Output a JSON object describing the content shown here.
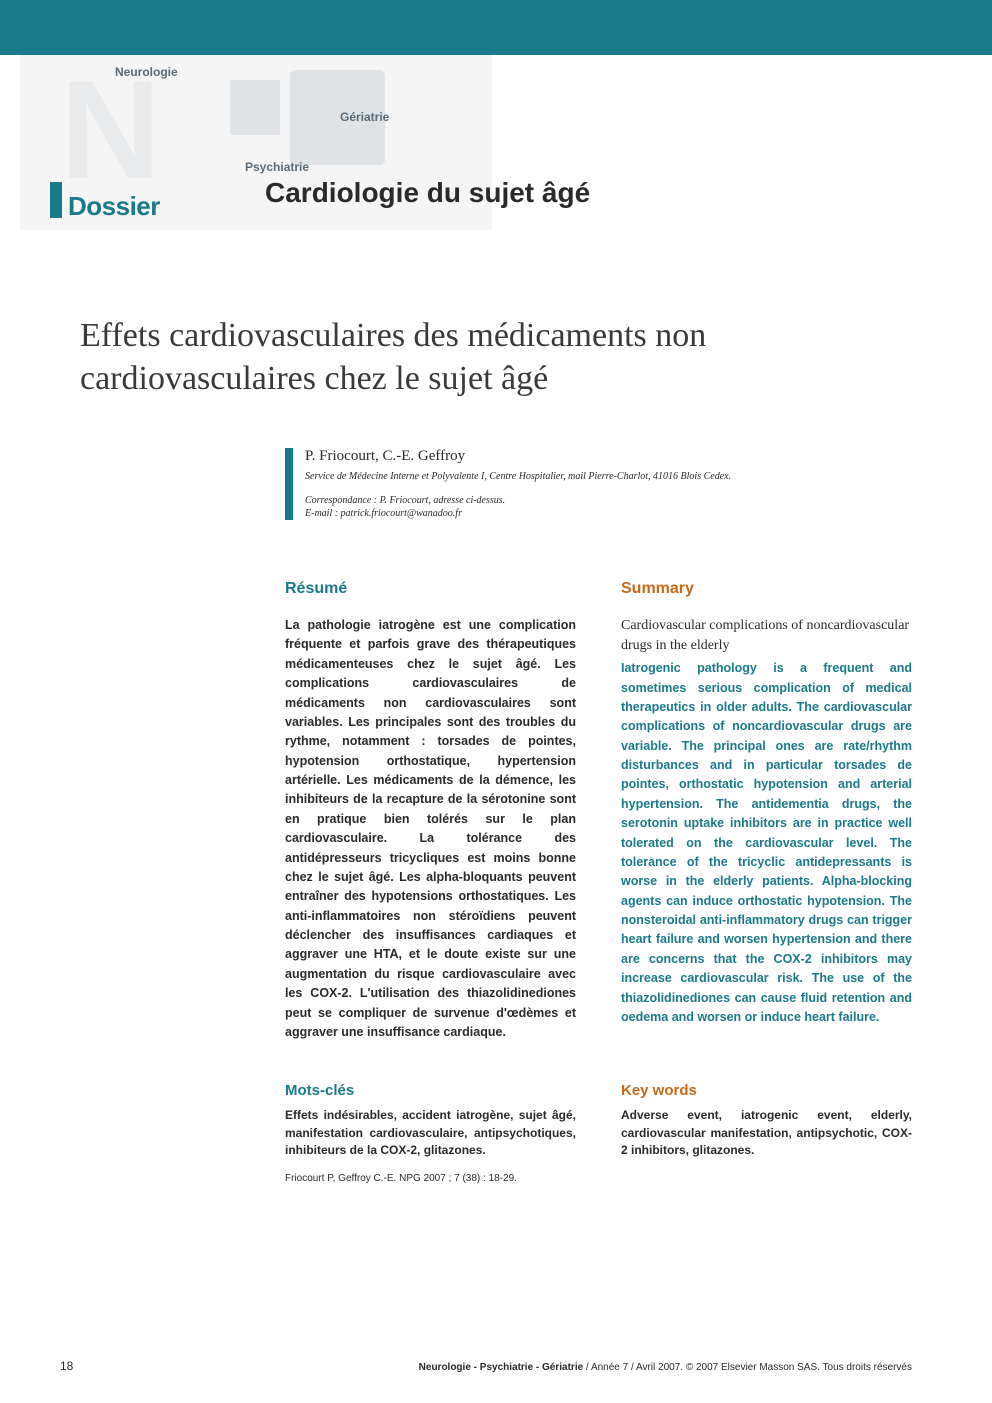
{
  "colors": {
    "teal": "#1a7a8a",
    "orange": "#c66a1a",
    "text": "#2a2a2a",
    "header_bg": "#f5f5f5",
    "label_gray": "#5a6a75"
  },
  "header": {
    "neurologie": "Neurologie",
    "psychiatrie": "Psychiatrie",
    "geriatrie": "Gériatrie",
    "dossier": "Dossier",
    "section_title": "Cardiologie du sujet âgé"
  },
  "article": {
    "title": "Effets cardiovasculaires des médicaments non cardiovasculaires chez le sujet âgé",
    "authors": "P. Friocourt, C.-E. Geffroy",
    "affiliation": "Service de Médecine Interne et Polyvalente I, Centre Hospitalier, mail Pierre-Charlot, 41016 Blois Cedex.",
    "correspondence_line1": "Correspondance : P. Friocourt, adresse ci-dessus.",
    "correspondence_line2": "E-mail : patrick.friocourt@wanadoo.fr"
  },
  "resume": {
    "heading": "Résumé",
    "text": "La pathologie iatrogène est une complication fréquente et parfois grave des thérapeutiques médicamenteuses chez le sujet âgé. Les complications cardiovasculaires de médicaments non cardiovasculaires sont variables. Les principales sont des troubles du rythme, notamment : torsades de pointes, hypotension orthostatique, hypertension artérielle. Les médicaments de la démence, les inhibiteurs de la recapture de la sérotonine sont en pratique bien tolérés sur le plan cardiovasculaire. La tolérance des antidépresseurs tricycliques est moins bonne chez le sujet âgé. Les alpha-bloquants peuvent entraîner des hypotensions orthostatiques. Les anti-inflammatoires non stéroïdiens peuvent déclencher des insuffisances cardiaques et aggraver une HTA, et le doute existe sur une augmentation du risque cardiovasculaire avec les COX-2. L'utilisation des thiazolidinediones peut se compliquer de survenue d'œdèmes et aggraver une insuffisance cardiaque."
  },
  "summary": {
    "heading": "Summary",
    "subtitle": "Cardiovascular complications of noncardiovascular drugs in the elderly",
    "text": "Iatrogenic pathology is a frequent and sometimes serious complication of medical therapeutics in older adults. The cardiovascular complications of noncardiovascular drugs are variable. The principal ones are rate/rhythm disturbances and in particular torsades de pointes, orthostatic hypotension and arterial hypertension. The antidementia drugs, the serotonin uptake inhibitors are in practice well tolerated on the cardiovascular level. The tolerance of the tricyclic antidepressants is worse in the elderly patients. Alpha-blocking agents can induce orthostatic hypotension. The nonsteroidal anti-inflammatory drugs can trigger heart failure and worsen hypertension and there are concerns that the COX-2 inhibitors may increase cardiovascular risk. The use of the thiazolidinediones can cause fluid retention and oedema and worsen or induce heart failure."
  },
  "motsclefs": {
    "heading": "Mots-clés",
    "text": "Effets indésirables, accident iatrogène, sujet âgé, manifestation cardiovasculaire, antipsychotiques, inhibiteurs de la COX-2, glitazones."
  },
  "keywords": {
    "heading": "Key words",
    "text": "Adverse event, iatrogenic event, elderly, cardiovascular manifestation, antipsychotic, COX-2 inhibitors, glitazones."
  },
  "citation": "Friocourt P, Geffroy C.-E. NPG 2007 ; 7 (38) : 18-29.",
  "footer": {
    "page": "18",
    "journal": "Neurologie - Psychiatrie - Gériatrie",
    "rest": " / Année 7 / Avril 2007. © 2007 Elsevier Masson SAS. Tous droits réservés"
  }
}
